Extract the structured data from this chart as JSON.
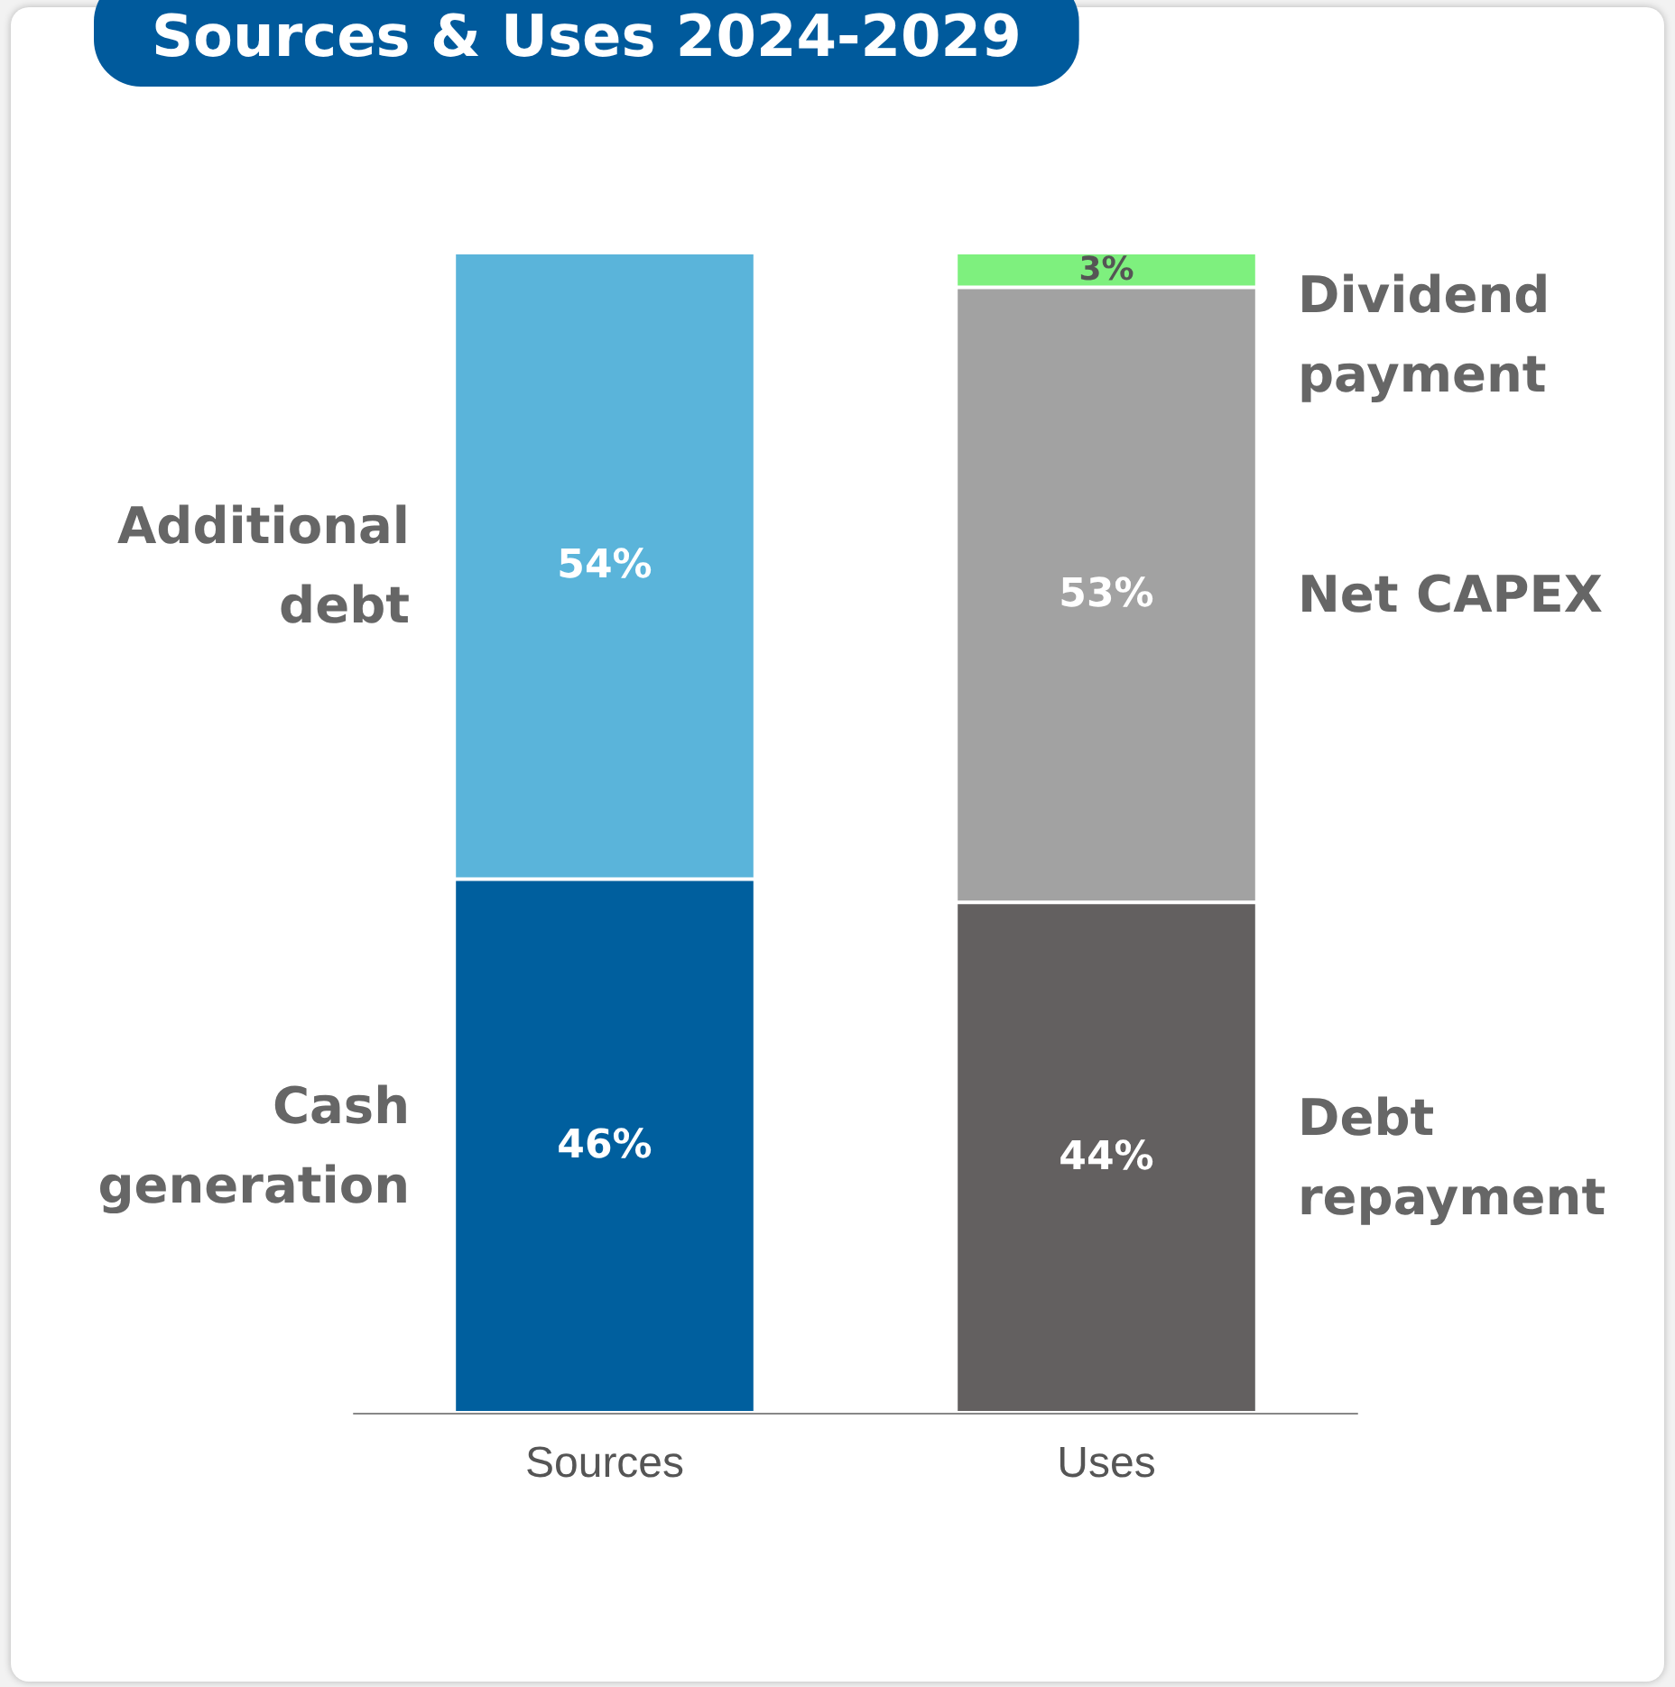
{
  "chart_data": {
    "type": "bar",
    "title": "Sources & Uses 2024-2029",
    "categories": [
      "Sources",
      "Uses"
    ],
    "stacked": true,
    "legend": false,
    "grid": false,
    "ylim": [
      0,
      100
    ],
    "series": [
      {
        "name": "Cash generation",
        "color": "#005f9e",
        "values": [
          46,
          null
        ],
        "value_labels": [
          "46%",
          null
        ]
      },
      {
        "name": "Additional debt",
        "color": "#5ab4da",
        "values": [
          54,
          null
        ],
        "value_labels": [
          "54%",
          null
        ]
      },
      {
        "name": "Debt repayment",
        "color": "#636060",
        "values": [
          null,
          44
        ],
        "value_labels": [
          null,
          "44%"
        ]
      },
      {
        "name": "Net CAPEX",
        "color": "#a2a2a2",
        "values": [
          null,
          53
        ],
        "value_labels": [
          null,
          "53%"
        ]
      },
      {
        "name": "Dividend payment",
        "color": "#7ef07e",
        "values": [
          null,
          3
        ],
        "value_labels": [
          null,
          "3%"
        ]
      }
    ]
  }
}
